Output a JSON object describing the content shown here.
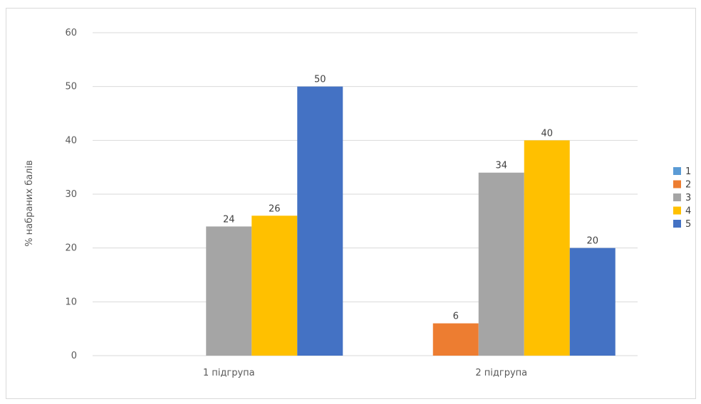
{
  "chart_data": {
    "type": "bar",
    "title": "",
    "xlabel": "",
    "ylabel": "% набраних балів",
    "ylim": [
      0,
      60
    ],
    "yticks": [
      0,
      10,
      20,
      30,
      40,
      50,
      60
    ],
    "grid": true,
    "legend_position": "right",
    "categories": [
      "1 підгрупа",
      "2 підгрупа"
    ],
    "series": [
      {
        "name": "1",
        "color": "#5b9bd5",
        "values": [
          0,
          0
        ]
      },
      {
        "name": "2",
        "color": "#ed7d31",
        "values": [
          0,
          6
        ]
      },
      {
        "name": "3",
        "color": "#a5a5a5",
        "values": [
          24,
          34
        ]
      },
      {
        "name": "4",
        "color": "#ffc000",
        "values": [
          26,
          40
        ]
      },
      {
        "name": "5",
        "color": "#4472c4",
        "values": [
          50,
          20
        ]
      }
    ],
    "data_labels": [
      [
        null,
        null
      ],
      [
        null,
        6
      ],
      [
        24,
        34
      ],
      [
        26,
        40
      ],
      [
        50,
        20
      ]
    ]
  }
}
